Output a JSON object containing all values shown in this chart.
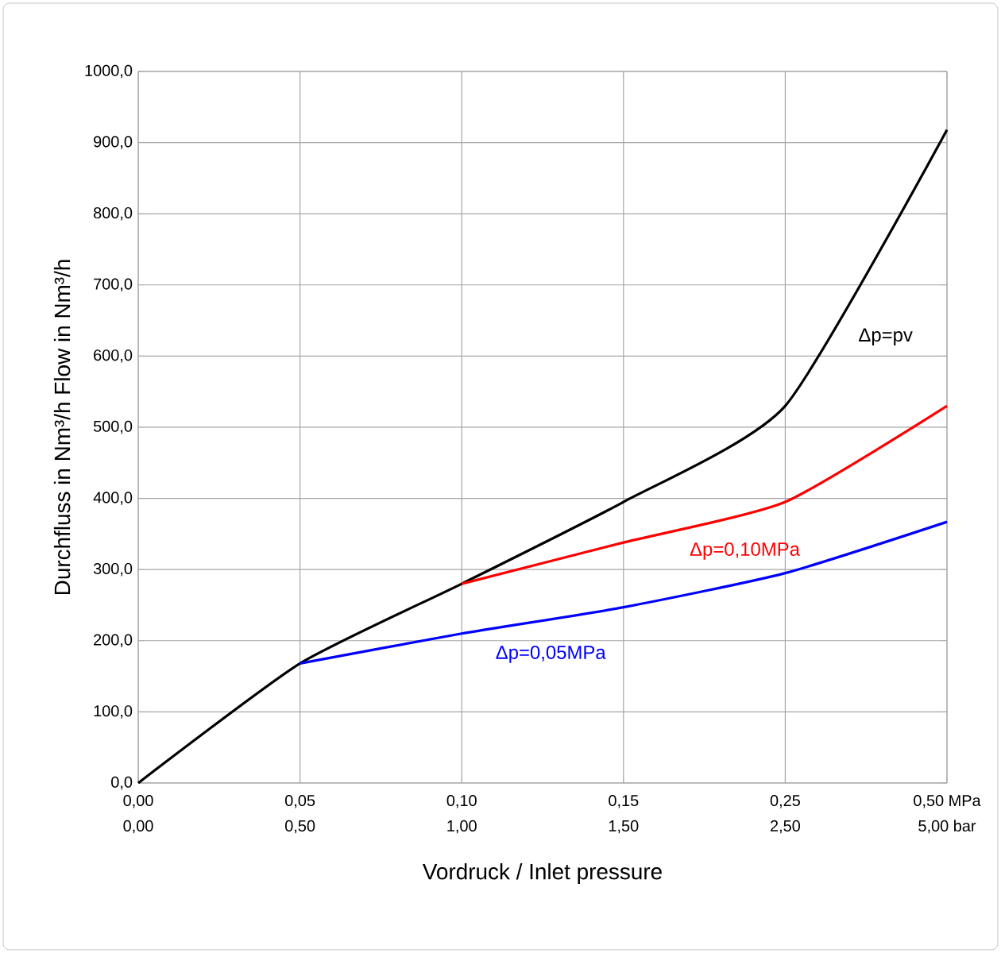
{
  "chart_data": {
    "type": "line",
    "xlabel": "Vordruck / Inlet pressure",
    "ylabel": "Durchfluss in Nm³/h   Flow in Nm³/h",
    "categories": [
      "0,00",
      "0,05",
      "0,10",
      "0,15",
      "0,25",
      "0,50 MPa"
    ],
    "annotations": [
      "0,00",
      "0,50",
      "1,00",
      "1,50",
      "2,50",
      "5,00 bar"
    ],
    "series": [
      {
        "name": "Δp=pv",
        "color": "#000000",
        "values": [
          0,
          168,
          280,
          395,
          530,
          918
        ]
      },
      {
        "name": "Δp=0,10MPa",
        "color": "#ff0000",
        "values": [
          null,
          null,
          280,
          338,
          395,
          530
        ]
      },
      {
        "name": "Δp=0,05MPa",
        "color": "#0000ff",
        "values": [
          null,
          168,
          210,
          247,
          295,
          367
        ]
      }
    ],
    "ylim": [
      0,
      1000
    ],
    "yticks": [
      {
        "value": 0,
        "label": "0,0"
      },
      {
        "value": 100,
        "label": "100,0"
      },
      {
        "value": 200,
        "label": "200,0"
      },
      {
        "value": 300,
        "label": "300,0"
      },
      {
        "value": 400,
        "label": "400,0"
      },
      {
        "value": 500,
        "label": "500,0"
      },
      {
        "value": 600,
        "label": "600,0"
      },
      {
        "value": 700,
        "label": "700,0"
      },
      {
        "value": 800,
        "label": "800,0"
      },
      {
        "value": 900,
        "label": "900,0"
      },
      {
        "value": 1000,
        "label": "1000,0"
      }
    ],
    "grid": true,
    "marker": "none",
    "line_style": "solid"
  }
}
